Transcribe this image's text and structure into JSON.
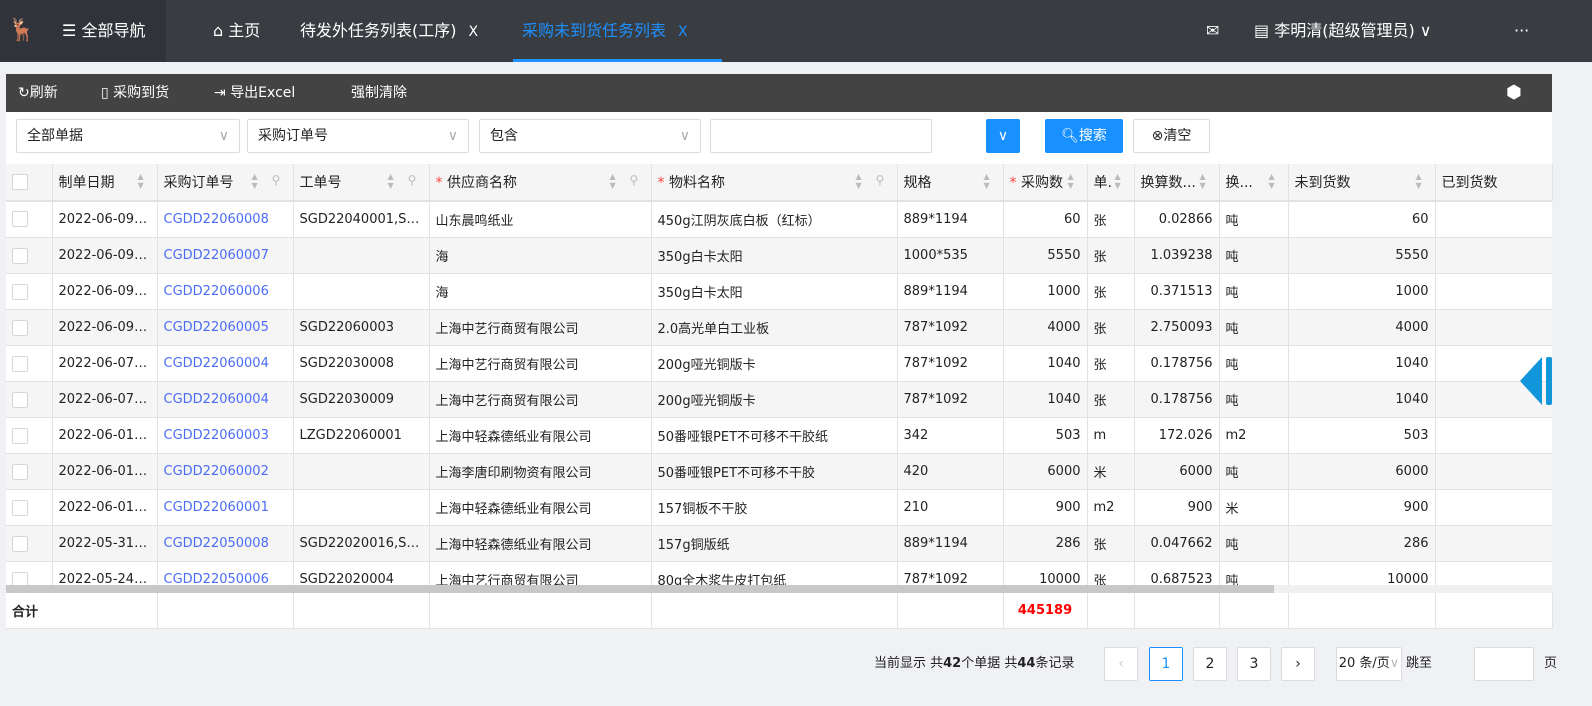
{
  "header": {
    "nav_label": "全部导航",
    "tabs": [
      {
        "label": "主页"
      },
      {
        "label": "待发外任务列表(工序)",
        "close": "X"
      },
      {
        "label": "采购未到货任务列表",
        "close": "X",
        "active": true
      }
    ],
    "user": "李明清(超级管理员)",
    "more": "···"
  },
  "toolbar": {
    "refresh": "刷新",
    "arrival": "采购到货",
    "export": "导出Excel",
    "force_clear": "强制清除"
  },
  "filter": {
    "scope": "全部单据",
    "field": "采购订单号",
    "operator": "包含",
    "value": "",
    "search": "搜索",
    "clear": "清空"
  },
  "columns": [
    {
      "label": "制单日期"
    },
    {
      "label": "采购订单号"
    },
    {
      "label": "工单号"
    },
    {
      "label": "供应商名称",
      "required": true
    },
    {
      "label": "物料名称",
      "required": true
    },
    {
      "label": "规格"
    },
    {
      "label": "采购数",
      "required": true
    },
    {
      "label": "单."
    },
    {
      "label": "换算数..."
    },
    {
      "label": "换..."
    },
    {
      "label": "未到货数"
    },
    {
      "label": "已到货数"
    }
  ],
  "rows": [
    [
      "2022-06-09 ...",
      "CGDD22060008",
      "SGD22040001,SG...",
      "山东晨鸣纸业",
      "450g江阴灰底白板（红标）",
      "889*1194",
      "60",
      "张",
      "0.02866",
      "吨",
      "60",
      ""
    ],
    [
      "2022-06-09 ...",
      "CGDD22060007",
      "",
      "海",
      "350g白卡太阳",
      "1000*535",
      "5550",
      "张",
      "1.039238",
      "吨",
      "5550",
      ""
    ],
    [
      "2022-06-09 ...",
      "CGDD22060006",
      "",
      "海",
      "350g白卡太阳",
      "889*1194",
      "1000",
      "张",
      "0.371513",
      "吨",
      "1000",
      ""
    ],
    [
      "2022-06-09 ...",
      "CGDD22060005",
      "SGD22060003",
      "上海中艺行商贸有限公司",
      "2.0高光单白工业板",
      "787*1092",
      "4000",
      "张",
      "2.750093",
      "吨",
      "4000",
      ""
    ],
    [
      "2022-06-07 ...",
      "CGDD22060004",
      "SGD22030008",
      "上海中艺行商贸有限公司",
      "200g哑光铜版卡",
      "787*1092",
      "1040",
      "张",
      "0.178756",
      "吨",
      "1040",
      ""
    ],
    [
      "2022-06-07 ...",
      "CGDD22060004",
      "SGD22030009",
      "上海中艺行商贸有限公司",
      "200g哑光铜版卡",
      "787*1092",
      "1040",
      "张",
      "0.178756",
      "吨",
      "1040",
      ""
    ],
    [
      "2022-06-01 ...",
      "CGDD22060003",
      "LZGD22060001",
      "上海中轻森德纸业有限公司",
      "50番哑银PET不可移不干胶纸",
      "342",
      "503",
      "m",
      "172.026",
      "m2",
      "503",
      ""
    ],
    [
      "2022-06-01 ...",
      "CGDD22060002",
      "",
      "上海李唐印刷物资有限公司",
      "50番哑银PET不可移不干胶",
      "420",
      "6000",
      "米",
      "6000",
      "吨",
      "6000",
      ""
    ],
    [
      "2022-06-01 ...",
      "CGDD22060001",
      "",
      "上海中轻森德纸业有限公司",
      "157铜板不干胶",
      "210",
      "900",
      "m2",
      "900",
      "米",
      "900",
      ""
    ],
    [
      "2022-05-31 ...",
      "CGDD22050008",
      "SGD22020016,SG...",
      "上海中轻森德纸业有限公司",
      "157g铜版纸",
      "889*1194",
      "286",
      "张",
      "0.047662",
      "吨",
      "286",
      ""
    ],
    [
      "2022-05-24 ...",
      "CGDD22050006",
      "SGD22020004",
      "上海中艺行商贸有限公司",
      "80g全木浆牛皮打包纸",
      "787*1092",
      "10000",
      "张",
      "0.687523",
      "吨",
      "10000",
      ""
    ]
  ],
  "footer": {
    "label": "合计",
    "total_qty": "445189"
  },
  "pagination": {
    "summary_prefix": "当前显示 共",
    "docs": "42",
    "docs_suffix": "个单据 共",
    "records": "44",
    "records_suffix": "条记录",
    "pages": [
      "1",
      "2",
      "3"
    ],
    "current": "1",
    "page_size": "20 条/页",
    "jump_label": "跳至",
    "page_unit": "页"
  },
  "colors": {
    "accent": "#1890ff",
    "topbar": "#393d42",
    "toolbar": "#434343",
    "total": "#ff0000",
    "link": "#4a6cf7"
  }
}
